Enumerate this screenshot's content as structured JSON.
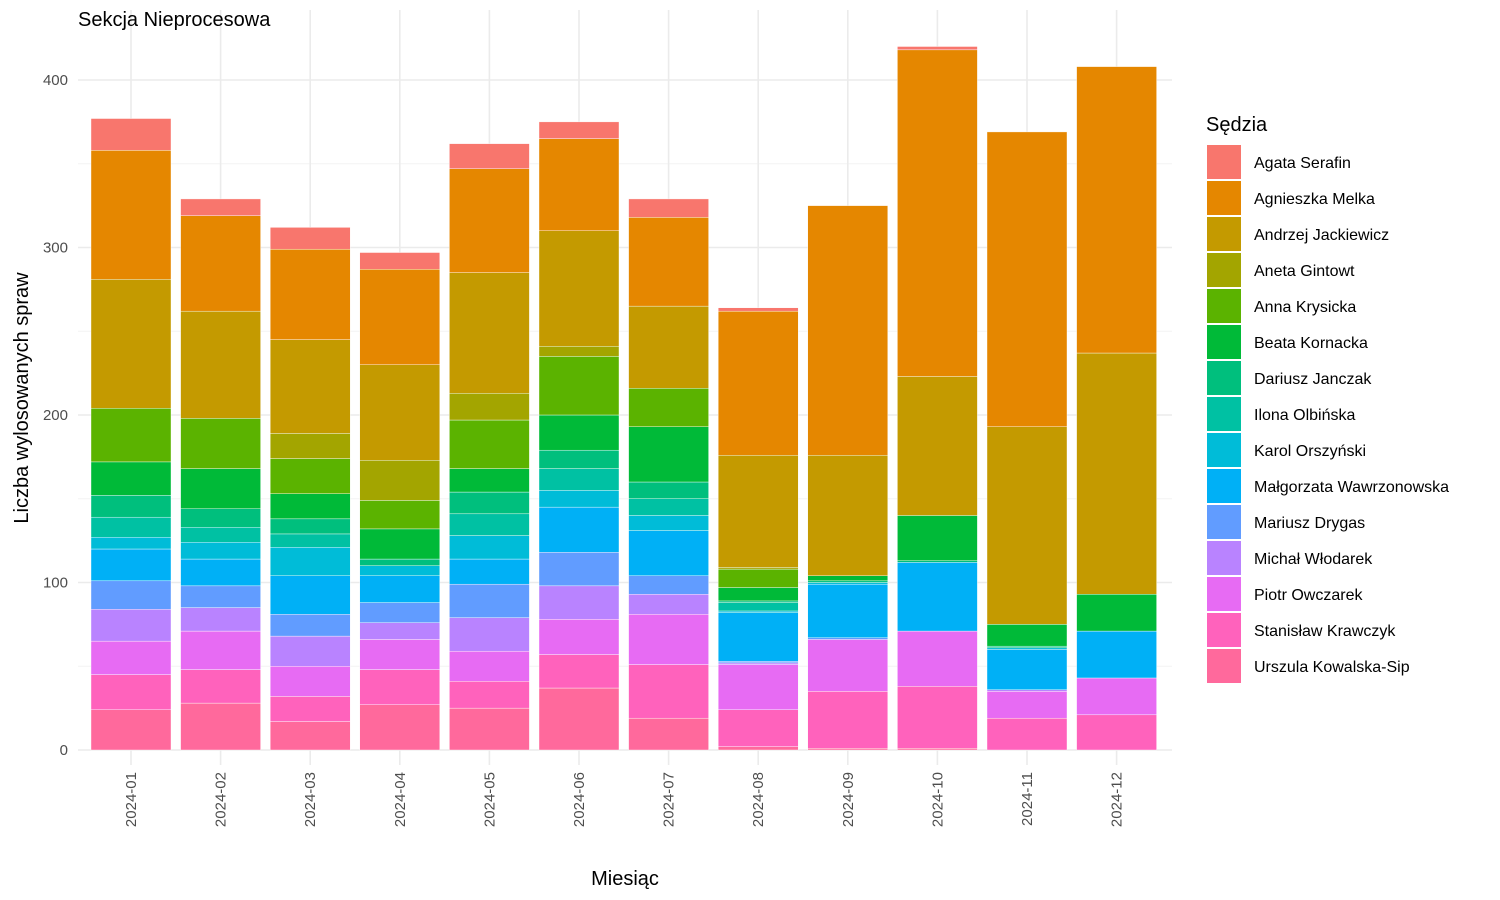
{
  "chart_data": {
    "type": "bar",
    "stacked": true,
    "title": "Sekcja Nieprocesowa",
    "xlabel": "Miesiąc",
    "ylabel": "Liczba wylosowanych spraw",
    "ylim": [
      0,
      420
    ],
    "yticks": [
      0,
      100,
      200,
      300,
      400
    ],
    "grid": true,
    "legend": {
      "title": "Sędzia",
      "position": "right"
    },
    "categories": [
      "2024-01",
      "2024-02",
      "2024-03",
      "2024-04",
      "2024-05",
      "2024-06",
      "2024-07",
      "2024-08",
      "2024-09",
      "2024-10",
      "2024-11",
      "2024-12"
    ],
    "series": [
      {
        "name": "Urszula Kowalska-Sip",
        "color": "#FF699C",
        "values": [
          24,
          28,
          17,
          27,
          25,
          37,
          19,
          2,
          1,
          1,
          0,
          0
        ]
      },
      {
        "name": "Stanisław Krawczyk",
        "color": "#FF62BC",
        "values": [
          21,
          20,
          15,
          21,
          16,
          20,
          32,
          22,
          34,
          37,
          19,
          21
        ]
      },
      {
        "name": "Piotr Owczarek",
        "color": "#E76BF3",
        "values": [
          20,
          23,
          18,
          18,
          18,
          21,
          30,
          27,
          31,
          33,
          16,
          22
        ]
      },
      {
        "name": "Michał Włodarek",
        "color": "#B983FF",
        "values": [
          19,
          14,
          18,
          10,
          20,
          20,
          12,
          1,
          0,
          0,
          1,
          0
        ]
      },
      {
        "name": "Mariusz Drygas",
        "color": "#619CFF",
        "values": [
          17,
          13,
          13,
          12,
          20,
          20,
          11,
          1,
          1,
          0,
          0,
          0
        ]
      },
      {
        "name": "Małgorzata Wawrzonowska",
        "color": "#00B0F6",
        "values": [
          19,
          16,
          23,
          16,
          15,
          27,
          27,
          29,
          32,
          41,
          24,
          28
        ]
      },
      {
        "name": "Karol Orszyński",
        "color": "#00BCD8",
        "values": [
          7,
          10,
          17,
          6,
          14,
          10,
          9,
          1,
          1,
          0,
          1,
          0
        ]
      },
      {
        "name": "Ilona Olbińska",
        "color": "#00C1A3",
        "values": [
          12,
          9,
          8,
          0,
          13,
          13,
          10,
          5,
          0,
          0,
          0,
          0
        ]
      },
      {
        "name": "Dariusz Janczak",
        "color": "#00BF7D",
        "values": [
          13,
          11,
          9,
          4,
          13,
          11,
          10,
          1,
          1,
          1,
          1,
          0
        ]
      },
      {
        "name": "Beata Kornacka",
        "color": "#00BA38",
        "values": [
          20,
          24,
          15,
          18,
          14,
          21,
          33,
          8,
          3,
          27,
          13,
          22
        ]
      },
      {
        "name": "Anna Krysicka",
        "color": "#5BB300",
        "values": [
          32,
          30,
          21,
          17,
          29,
          35,
          23,
          11,
          0,
          0,
          0,
          0
        ]
      },
      {
        "name": "Aneta Gintowt",
        "color": "#A3A500",
        "values": [
          0,
          0,
          15,
          24,
          16,
          6,
          0,
          1,
          0,
          0,
          0,
          0
        ]
      },
      {
        "name": "Andrzej Jackiewicz",
        "color": "#C49A00",
        "values": [
          77,
          64,
          56,
          57,
          72,
          69,
          49,
          67,
          72,
          83,
          118,
          144
        ]
      },
      {
        "name": "Agnieszka Melka",
        "color": "#E58700",
        "values": [
          77,
          57,
          54,
          57,
          62,
          55,
          53,
          86,
          149,
          195,
          176,
          171
        ]
      },
      {
        "name": "Agata Serafin",
        "color": "#F8766D",
        "values": [
          19,
          10,
          13,
          10,
          15,
          10,
          11,
          2,
          0,
          2,
          0,
          0
        ]
      }
    ],
    "legend_order": [
      "Agata Serafin",
      "Agnieszka Melka",
      "Andrzej Jackiewicz",
      "Aneta Gintowt",
      "Anna Krysicka",
      "Beata Kornacka",
      "Dariusz Janczak",
      "Ilona Olbińska",
      "Karol Orszyński",
      "Małgorzata Wawrzonowska",
      "Mariusz Drygas",
      "Michał Włodarek",
      "Piotr Owczarek",
      "Stanisław Krawczyk",
      "Urszula Kowalska-Sip"
    ]
  }
}
